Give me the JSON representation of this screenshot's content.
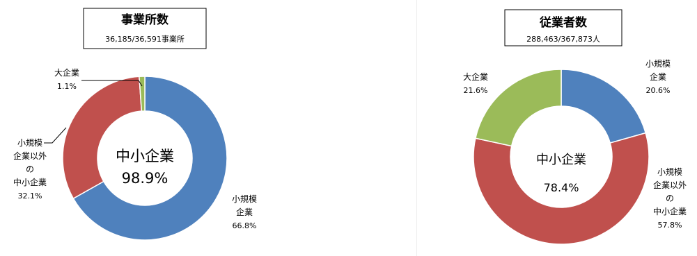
{
  "chart_data": [
    {
      "type": "donut",
      "title": "事業所数",
      "subtitle": "36,185/36,591事業所",
      "center_label": "中小企業",
      "center_value": "98.9%",
      "slices": [
        {
          "label_lines": [
            "小規模",
            "企業"
          ],
          "value": 66.8,
          "value_text": "66.8%",
          "color": "#4f81bd"
        },
        {
          "label_lines": [
            "小規模",
            "企業以外",
            "の",
            "中小企業"
          ],
          "value": 32.1,
          "value_text": "32.1%",
          "color": "#c0504d"
        },
        {
          "label_lines": [
            "大企業"
          ],
          "value": 1.1,
          "value_text": "1.1%",
          "color": "#9bbb59"
        }
      ],
      "legend": "none",
      "grid": false
    },
    {
      "type": "donut",
      "title": "従業者数",
      "subtitle": "288,463/367,873人",
      "center_label": "中小企業",
      "center_value": "78.4%",
      "slices": [
        {
          "label_lines": [
            "小規模",
            "企業"
          ],
          "value": 20.6,
          "value_text": "20.6%",
          "color": "#4f81bd"
        },
        {
          "label_lines": [
            "小規模",
            "企業以外",
            "の",
            "中小企業"
          ],
          "value": 57.8,
          "value_text": "57.8%",
          "color": "#c0504d"
        },
        {
          "label_lines": [
            "大企業"
          ],
          "value": 21.6,
          "value_text": "21.6%",
          "color": "#9bbb59"
        }
      ],
      "legend": "none",
      "grid": false
    }
  ]
}
